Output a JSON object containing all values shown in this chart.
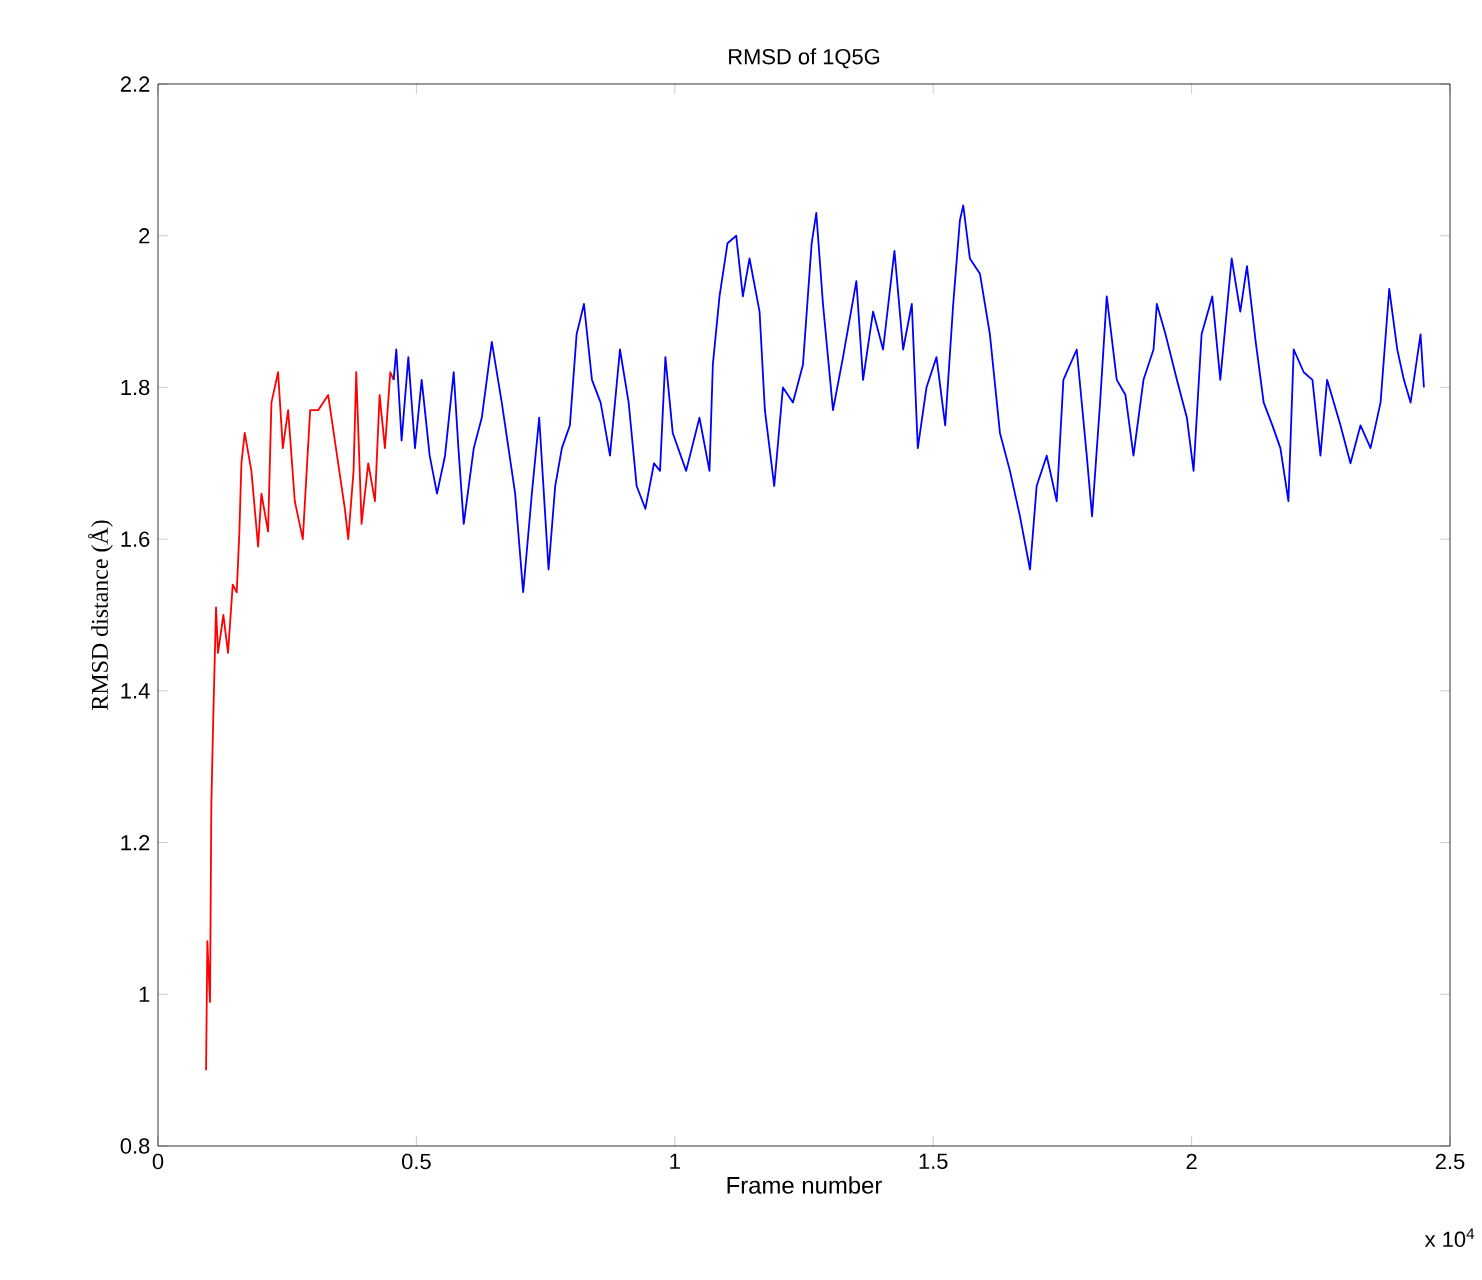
{
  "chart_data": {
    "type": "line",
    "title": "RMSD of 1Q5G",
    "xlabel": "Frame number",
    "ylabel": "RMSD distance (Å)",
    "xlim": [
      0,
      2.5
    ],
    "ylim": [
      0.8,
      2.2
    ],
    "xticks": [
      0,
      0.5,
      1,
      1.5,
      2,
      2.5
    ],
    "yticks": [
      0.8,
      1,
      1.2,
      1.4,
      1.6,
      1.8,
      2,
      2.2
    ],
    "annotations": [
      "x 10$^{4}$"
    ],
    "grid": false,
    "marker": "none",
    "line_style": "solid",
    "series": [
      {
        "color": "#ff0000",
        "x": [
          0.093,
          0.0955,
          0.1006,
          0.1032,
          0.1071,
          0.1123,
          0.1161,
          0.1265,
          0.1355,
          0.1446,
          0.1523,
          0.1575,
          0.1614,
          0.1678,
          0.1807,
          0.1937,
          0.2001,
          0.213,
          0.2195,
          0.2324,
          0.2415,
          0.2518,
          0.2647,
          0.2802,
          0.2944,
          0.3099,
          0.3293,
          0.3422,
          0.3616,
          0.3681,
          0.3784,
          0.3836,
          0.3939,
          0.4068,
          0.4198,
          0.4288,
          0.4391,
          0.4495,
          0.456
        ],
        "values": [
          0.9,
          1.07,
          0.99,
          1.25,
          1.37,
          1.51,
          1.45,
          1.5,
          1.45,
          1.54,
          1.53,
          1.61,
          1.7,
          1.74,
          1.69,
          1.59,
          1.66,
          1.61,
          1.78,
          1.82,
          1.72,
          1.77,
          1.65,
          1.6,
          1.77,
          1.77,
          1.79,
          1.73,
          1.64,
          1.6,
          1.69,
          1.82,
          1.62,
          1.7,
          1.65,
          1.79,
          1.72,
          1.82,
          1.81
        ]
      },
      {
        "color": "#0000ff",
        "x": [
          0.456,
          0.4611,
          0.4714,
          0.4844,
          0.4973,
          0.5102,
          0.5257,
          0.5399,
          0.5554,
          0.5722,
          0.5813,
          0.5916,
          0.611,
          0.6265,
          0.6459,
          0.6652,
          0.6911,
          0.7066,
          0.7234,
          0.7376,
          0.7557,
          0.7686,
          0.7815,
          0.797,
          0.81,
          0.8242,
          0.8397,
          0.8565,
          0.8746,
          0.8939,
          0.9107,
          0.9262,
          0.943,
          0.9598,
          0.9714,
          0.9818,
          0.996,
          1.0219,
          1.0477,
          1.0671,
          1.0736,
          1.0865,
          1.102,
          1.1188,
          1.1317,
          1.1446,
          1.164,
          1.1743,
          1.1924,
          1.2092,
          1.2286,
          1.248,
          1.2648,
          1.2738,
          1.2867,
          1.3061,
          1.3255,
          1.3513,
          1.3643,
          1.3836,
          1.403,
          1.425,
          1.4418,
          1.4586,
          1.4702,
          1.487,
          1.5064,
          1.5232,
          1.5387,
          1.5516,
          1.5581,
          1.571,
          1.5904,
          1.6097,
          1.6291,
          1.6485,
          1.6679,
          1.6873,
          1.7002,
          1.7196,
          1.739,
          1.7519,
          1.7777,
          1.7971,
          1.8074,
          1.8229,
          1.8358,
          1.8552,
          1.872,
          1.8875,
          1.9069,
          1.9263,
          1.9327,
          1.9495,
          1.9715,
          1.9909,
          2.0038,
          2.0193,
          2.04,
          2.0555,
          2.0775,
          2.0942,
          2.1071,
          2.124,
          2.1395,
          2.1563,
          2.1718,
          2.1873,
          2.1976,
          2.217,
          2.2338,
          2.2493,
          2.2622,
          2.288,
          2.3074,
          2.3268,
          2.3462,
          2.3656,
          2.3824,
          2.3979,
          2.4108,
          2.4237,
          2.443,
          2.4495
        ],
        "values": [
          1.81,
          1.85,
          1.73,
          1.84,
          1.72,
          1.81,
          1.71,
          1.66,
          1.71,
          1.82,
          1.72,
          1.62,
          1.72,
          1.76,
          1.86,
          1.78,
          1.66,
          1.53,
          1.66,
          1.76,
          1.56,
          1.67,
          1.72,
          1.75,
          1.87,
          1.91,
          1.81,
          1.78,
          1.71,
          1.85,
          1.78,
          1.67,
          1.64,
          1.7,
          1.69,
          1.84,
          1.74,
          1.69,
          1.76,
          1.69,
          1.83,
          1.92,
          1.99,
          2.0,
          1.92,
          1.97,
          1.9,
          1.77,
          1.67,
          1.8,
          1.78,
          1.83,
          1.99,
          2.03,
          1.91,
          1.77,
          1.84,
          1.94,
          1.81,
          1.9,
          1.85,
          1.98,
          1.85,
          1.91,
          1.72,
          1.8,
          1.84,
          1.75,
          1.91,
          2.02,
          2.04,
          1.97,
          1.95,
          1.87,
          1.74,
          1.69,
          1.63,
          1.56,
          1.67,
          1.71,
          1.65,
          1.81,
          1.85,
          1.71,
          1.63,
          1.78,
          1.92,
          1.81,
          1.79,
          1.71,
          1.81,
          1.85,
          1.91,
          1.87,
          1.81,
          1.76,
          1.69,
          1.87,
          1.92,
          1.81,
          1.97,
          1.9,
          1.96,
          1.86,
          1.78,
          1.75,
          1.72,
          1.65,
          1.85,
          1.82,
          1.81,
          1.71,
          1.81,
          1.75,
          1.7,
          1.75,
          1.72,
          1.78,
          1.93,
          1.85,
          1.81,
          1.78,
          1.87,
          1.8
        ]
      }
    ]
  }
}
